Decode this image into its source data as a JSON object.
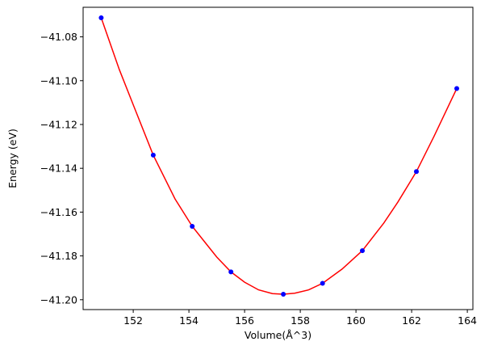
{
  "chart_data": {
    "type": "scatter",
    "xlabel": "Volume(Å^3)",
    "ylabel": "Energy (eV)",
    "xlim": [
      150.2,
      164.2
    ],
    "ylim": [
      -41.2045,
      -41.0665
    ],
    "xticks": [
      152,
      154,
      156,
      158,
      160,
      162,
      164
    ],
    "yticks": [
      -41.2,
      -41.18,
      -41.16,
      -41.14,
      -41.12,
      -41.1,
      -41.08
    ],
    "ytick_labels": [
      "−41.20",
      "−41.18",
      "−41.16",
      "−41.14",
      "−41.12",
      "−41.10",
      "−41.08"
    ],
    "grid": false,
    "series": [
      {
        "kind": "points",
        "color": "#0000ff",
        "x": [
          150.85,
          152.72,
          154.12,
          155.51,
          157.39,
          158.8,
          160.23,
          162.17,
          163.62
        ],
        "y": [
          -41.0713,
          -41.134,
          -41.1665,
          -41.1873,
          -41.1975,
          -41.1925,
          -41.1776,
          -41.1415,
          -41.1036
        ]
      },
      {
        "kind": "fit-curve",
        "color": "#ff0000",
        "x": [
          150.85,
          151.5,
          152.0,
          152.72,
          153.5,
          154.12,
          155.0,
          155.51,
          156.0,
          156.5,
          157.0,
          157.39,
          157.8,
          158.3,
          158.8,
          159.5,
          160.23,
          161.0,
          161.5,
          162.17,
          162.8,
          163.62
        ],
        "y": [
          -41.0713,
          -41.095,
          -41.111,
          -41.134,
          -41.154,
          -41.1665,
          -41.1805,
          -41.1873,
          -41.192,
          -41.1955,
          -41.1972,
          -41.1975,
          -41.197,
          -41.1955,
          -41.1925,
          -41.186,
          -41.1776,
          -41.165,
          -41.1555,
          -41.1415,
          -41.1255,
          -41.1036
        ]
      }
    ]
  }
}
